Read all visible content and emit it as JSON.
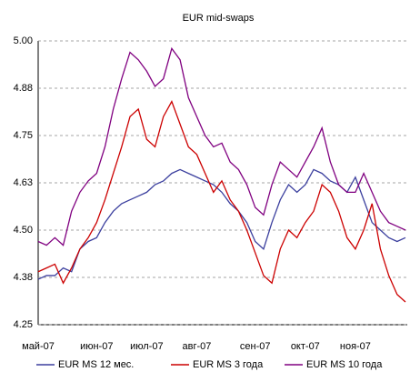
{
  "chart_data": {
    "type": "line",
    "title": "EUR mid-swaps",
    "categories": [
      "май-07",
      null,
      null,
      null,
      null,
      null,
      null,
      "июн-07",
      null,
      null,
      null,
      null,
      null,
      "июл-07",
      null,
      null,
      null,
      null,
      null,
      "авг-07",
      null,
      null,
      null,
      null,
      null,
      null,
      "сен-07",
      null,
      null,
      null,
      null,
      null,
      "окт-07",
      null,
      null,
      null,
      null,
      null,
      "ноя-07",
      null,
      null,
      null,
      null,
      null,
      null
    ],
    "series": [
      {
        "name": "EUR MS 12 мес.",
        "color": "#3b3f9e",
        "values": [
          4.37,
          4.38,
          4.38,
          4.4,
          4.39,
          4.45,
          4.47,
          4.48,
          4.52,
          4.55,
          4.57,
          4.58,
          4.59,
          4.6,
          4.62,
          4.63,
          4.65,
          4.66,
          4.65,
          4.64,
          4.63,
          4.62,
          4.6,
          4.57,
          4.55,
          4.52,
          4.47,
          4.45,
          4.52,
          4.58,
          4.62,
          4.6,
          4.62,
          4.66,
          4.65,
          4.63,
          4.62,
          4.6,
          4.64,
          4.58,
          4.52,
          4.5,
          4.48,
          4.47,
          4.48
        ]
      },
      {
        "name": "EUR MS 3 года",
        "color": "#cc0000",
        "values": [
          4.39,
          4.4,
          4.41,
          4.36,
          4.4,
          4.45,
          4.48,
          4.52,
          4.58,
          4.65,
          4.72,
          4.8,
          4.82,
          4.74,
          4.72,
          4.8,
          4.84,
          4.78,
          4.72,
          4.7,
          4.65,
          4.6,
          4.63,
          4.58,
          4.55,
          4.5,
          4.44,
          4.38,
          4.36,
          4.45,
          4.5,
          4.48,
          4.52,
          4.55,
          4.62,
          4.6,
          4.55,
          4.48,
          4.45,
          4.5,
          4.57,
          4.45,
          4.38,
          4.33,
          4.31
        ]
      },
      {
        "name": "EUR MS 10 года",
        "color": "#800080",
        "values": [
          4.47,
          4.46,
          4.48,
          4.46,
          4.55,
          4.6,
          4.63,
          4.65,
          4.72,
          4.82,
          4.9,
          4.97,
          4.95,
          4.92,
          4.88,
          4.9,
          4.98,
          4.95,
          4.85,
          4.8,
          4.75,
          4.72,
          4.73,
          4.68,
          4.66,
          4.62,
          4.56,
          4.54,
          4.62,
          4.68,
          4.66,
          4.64,
          4.68,
          4.72,
          4.77,
          4.68,
          4.62,
          4.6,
          4.6,
          4.65,
          4.6,
          4.55,
          4.52,
          4.51,
          4.5
        ]
      }
    ],
    "ylim": [
      4.25,
      5.0
    ],
    "yticks": [
      4.25,
      {
        "value": 4.375,
        "label": "4.38"
      },
      {
        "value": 4.5,
        "label": "4.50"
      },
      {
        "value": 4.625,
        "label": "4.63"
      },
      4.75,
      {
        "value": 4.875,
        "label": "4.88"
      },
      {
        "value": 5.0,
        "label": "5.00"
      }
    ],
    "grid": true,
    "legend": "bottom"
  }
}
